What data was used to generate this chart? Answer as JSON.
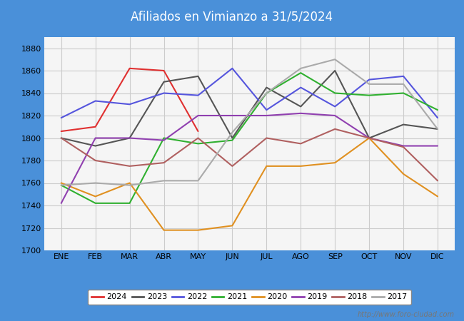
{
  "title": "Afiliados en Vimianzo a 31/5/2024",
  "title_bg_color": "#4a90d9",
  "title_text_color": "white",
  "months": [
    "ENE",
    "FEB",
    "MAR",
    "ABR",
    "MAY",
    "JUN",
    "JUL",
    "AGO",
    "SEP",
    "OCT",
    "NOV",
    "DIC"
  ],
  "ylim": [
    1700,
    1890
  ],
  "yticks": [
    1700,
    1720,
    1740,
    1760,
    1780,
    1800,
    1820,
    1840,
    1860,
    1880
  ],
  "series": {
    "2024": {
      "color": "#e03030",
      "data": [
        1806,
        1810,
        1862,
        1860,
        1806,
        null,
        null,
        null,
        null,
        null,
        null,
        null
      ]
    },
    "2023": {
      "color": "#555555",
      "data": [
        1800,
        1793,
        1800,
        1850,
        1855,
        1800,
        1845,
        1828,
        1860,
        1800,
        1812,
        1808
      ]
    },
    "2022": {
      "color": "#5555dd",
      "data": [
        1818,
        1833,
        1830,
        1840,
        1838,
        1862,
        1825,
        1845,
        1828,
        1852,
        1855,
        1818
      ]
    },
    "2021": {
      "color": "#30b030",
      "data": [
        1758,
        1742,
        1742,
        1800,
        1795,
        1798,
        1840,
        1858,
        1840,
        1838,
        1840,
        1825
      ]
    },
    "2020": {
      "color": "#e09020",
      "data": [
        1760,
        1748,
        1760,
        1718,
        1718,
        1722,
        1775,
        1775,
        1778,
        1800,
        1768,
        1748
      ]
    },
    "2019": {
      "color": "#9040b0",
      "data": [
        1742,
        1800,
        1800,
        1798,
        1820,
        1820,
        1820,
        1822,
        1820,
        1800,
        1793,
        1793
      ]
    },
    "2018": {
      "color": "#b06060",
      "data": [
        1800,
        1780,
        1775,
        1778,
        1800,
        1775,
        1800,
        1795,
        1808,
        1800,
        1792,
        1762
      ]
    },
    "2017": {
      "color": "#aaaaaa",
      "data": [
        1758,
        1760,
        1758,
        1762,
        1762,
        1805,
        1840,
        1862,
        1870,
        1848,
        1848,
        1808
      ]
    }
  },
  "legend_order": [
    "2024",
    "2023",
    "2022",
    "2021",
    "2020",
    "2019",
    "2018",
    "2017"
  ],
  "watermark": "http://www.foro-ciudad.com",
  "plot_bg_color": "#f5f5f5",
  "grid_color": "#cccccc"
}
